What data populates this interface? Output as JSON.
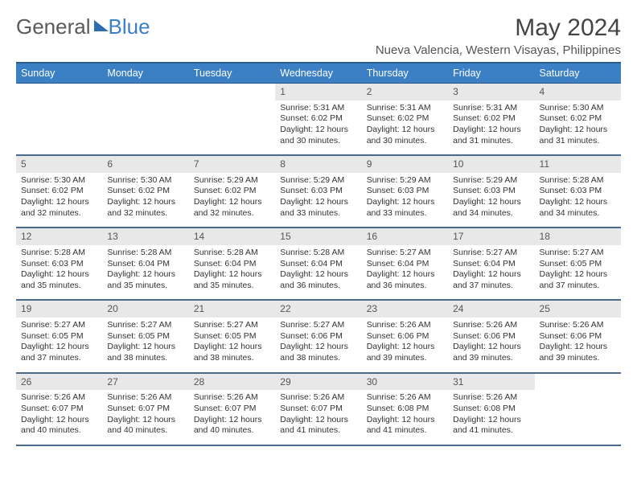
{
  "brand": {
    "part1": "General",
    "part2": "Blue"
  },
  "title": "May 2024",
  "location": "Nueva Valencia, Western Visayas, Philippines",
  "colors": {
    "header_bg": "#3b7fc4",
    "header_border": "#2d5a8a",
    "daynum_bg": "#e8e8e8",
    "row_divider": "#4a6a8a",
    "text": "#333333",
    "logo_gray": "#5a5a5a",
    "logo_blue": "#3b7fc4"
  },
  "weekdays": [
    "Sunday",
    "Monday",
    "Tuesday",
    "Wednesday",
    "Thursday",
    "Friday",
    "Saturday"
  ],
  "weeks": [
    [
      null,
      null,
      null,
      {
        "n": "1",
        "sr": "5:31 AM",
        "ss": "6:02 PM",
        "dl": "12 hours and 30 minutes."
      },
      {
        "n": "2",
        "sr": "5:31 AM",
        "ss": "6:02 PM",
        "dl": "12 hours and 30 minutes."
      },
      {
        "n": "3",
        "sr": "5:31 AM",
        "ss": "6:02 PM",
        "dl": "12 hours and 31 minutes."
      },
      {
        "n": "4",
        "sr": "5:30 AM",
        "ss": "6:02 PM",
        "dl": "12 hours and 31 minutes."
      }
    ],
    [
      {
        "n": "5",
        "sr": "5:30 AM",
        "ss": "6:02 PM",
        "dl": "12 hours and 32 minutes."
      },
      {
        "n": "6",
        "sr": "5:30 AM",
        "ss": "6:02 PM",
        "dl": "12 hours and 32 minutes."
      },
      {
        "n": "7",
        "sr": "5:29 AM",
        "ss": "6:02 PM",
        "dl": "12 hours and 32 minutes."
      },
      {
        "n": "8",
        "sr": "5:29 AM",
        "ss": "6:03 PM",
        "dl": "12 hours and 33 minutes."
      },
      {
        "n": "9",
        "sr": "5:29 AM",
        "ss": "6:03 PM",
        "dl": "12 hours and 33 minutes."
      },
      {
        "n": "10",
        "sr": "5:29 AM",
        "ss": "6:03 PM",
        "dl": "12 hours and 34 minutes."
      },
      {
        "n": "11",
        "sr": "5:28 AM",
        "ss": "6:03 PM",
        "dl": "12 hours and 34 minutes."
      }
    ],
    [
      {
        "n": "12",
        "sr": "5:28 AM",
        "ss": "6:03 PM",
        "dl": "12 hours and 35 minutes."
      },
      {
        "n": "13",
        "sr": "5:28 AM",
        "ss": "6:04 PM",
        "dl": "12 hours and 35 minutes."
      },
      {
        "n": "14",
        "sr": "5:28 AM",
        "ss": "6:04 PM",
        "dl": "12 hours and 35 minutes."
      },
      {
        "n": "15",
        "sr": "5:28 AM",
        "ss": "6:04 PM",
        "dl": "12 hours and 36 minutes."
      },
      {
        "n": "16",
        "sr": "5:27 AM",
        "ss": "6:04 PM",
        "dl": "12 hours and 36 minutes."
      },
      {
        "n": "17",
        "sr": "5:27 AM",
        "ss": "6:04 PM",
        "dl": "12 hours and 37 minutes."
      },
      {
        "n": "18",
        "sr": "5:27 AM",
        "ss": "6:05 PM",
        "dl": "12 hours and 37 minutes."
      }
    ],
    [
      {
        "n": "19",
        "sr": "5:27 AM",
        "ss": "6:05 PM",
        "dl": "12 hours and 37 minutes."
      },
      {
        "n": "20",
        "sr": "5:27 AM",
        "ss": "6:05 PM",
        "dl": "12 hours and 38 minutes."
      },
      {
        "n": "21",
        "sr": "5:27 AM",
        "ss": "6:05 PM",
        "dl": "12 hours and 38 minutes."
      },
      {
        "n": "22",
        "sr": "5:27 AM",
        "ss": "6:06 PM",
        "dl": "12 hours and 38 minutes."
      },
      {
        "n": "23",
        "sr": "5:26 AM",
        "ss": "6:06 PM",
        "dl": "12 hours and 39 minutes."
      },
      {
        "n": "24",
        "sr": "5:26 AM",
        "ss": "6:06 PM",
        "dl": "12 hours and 39 minutes."
      },
      {
        "n": "25",
        "sr": "5:26 AM",
        "ss": "6:06 PM",
        "dl": "12 hours and 39 minutes."
      }
    ],
    [
      {
        "n": "26",
        "sr": "5:26 AM",
        "ss": "6:07 PM",
        "dl": "12 hours and 40 minutes."
      },
      {
        "n": "27",
        "sr": "5:26 AM",
        "ss": "6:07 PM",
        "dl": "12 hours and 40 minutes."
      },
      {
        "n": "28",
        "sr": "5:26 AM",
        "ss": "6:07 PM",
        "dl": "12 hours and 40 minutes."
      },
      {
        "n": "29",
        "sr": "5:26 AM",
        "ss": "6:07 PM",
        "dl": "12 hours and 41 minutes."
      },
      {
        "n": "30",
        "sr": "5:26 AM",
        "ss": "6:08 PM",
        "dl": "12 hours and 41 minutes."
      },
      {
        "n": "31",
        "sr": "5:26 AM",
        "ss": "6:08 PM",
        "dl": "12 hours and 41 minutes."
      },
      null
    ]
  ],
  "labels": {
    "sunrise": "Sunrise:",
    "sunset": "Sunset:",
    "daylight": "Daylight:"
  }
}
